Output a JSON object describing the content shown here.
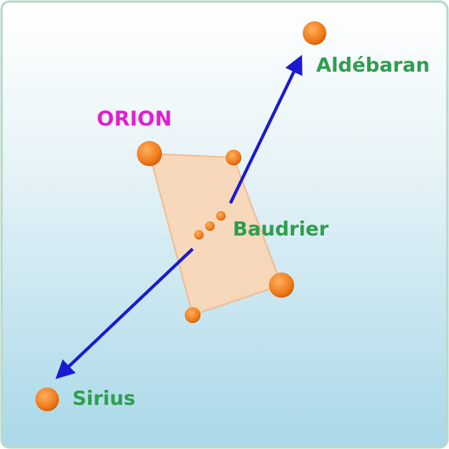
{
  "constellation": {
    "label": "ORION"
  },
  "nodes": [
    {
      "label": "Aldébaran"
    },
    {
      "label": "Baudrier"
    },
    {
      "label": "Sirius"
    }
  ]
}
